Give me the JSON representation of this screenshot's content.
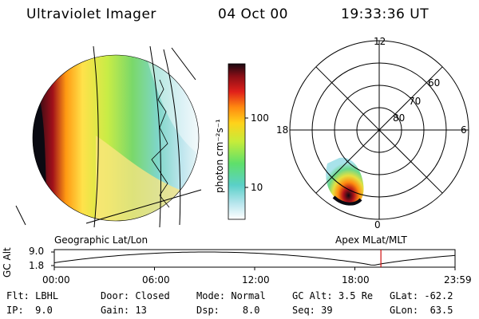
{
  "header": {
    "instrument": "Ultraviolet Imager",
    "date": "04 Oct 00",
    "time": "19:33:36 UT"
  },
  "colorbar": {
    "unit_label": "photon cm⁻²s⁻¹",
    "ticks": [
      "100",
      "10"
    ]
  },
  "polar_plot": {
    "mlt_labels": [
      "12",
      "18",
      "6",
      "0"
    ],
    "lat_labels": [
      "60",
      "70",
      "80"
    ]
  },
  "titles": {
    "left": "Geographic Lat/Lon",
    "right": "Apex MLat/MLT"
  },
  "alt_plot": {
    "axis_label": "GC Alt",
    "y_ticks": [
      "9.0",
      "1.8"
    ],
    "x_ticks": [
      "00:00",
      "06:00",
      "12:00",
      "18:00",
      "23:59"
    ],
    "current_time_marker_hour": 19.56
  },
  "info": {
    "row1": [
      {
        "label": "Flt:",
        "value": "LBHL"
      },
      {
        "label": "Door:",
        "value": "Closed"
      },
      {
        "label": "Mode:",
        "value": "Normal"
      },
      {
        "label": "GC Alt:",
        "value": "3.5 Re"
      },
      {
        "label": "GLat:",
        "value": "-62.2"
      }
    ],
    "row2": [
      {
        "label": "IP:",
        "value": "9.0"
      },
      {
        "label": "Gain:",
        "value": "13"
      },
      {
        "label": "Dsp:",
        "value": "8.0"
      },
      {
        "label": "Seq:",
        "value": "39"
      },
      {
        "label": "GLon:",
        "value": "63.5"
      }
    ]
  }
}
